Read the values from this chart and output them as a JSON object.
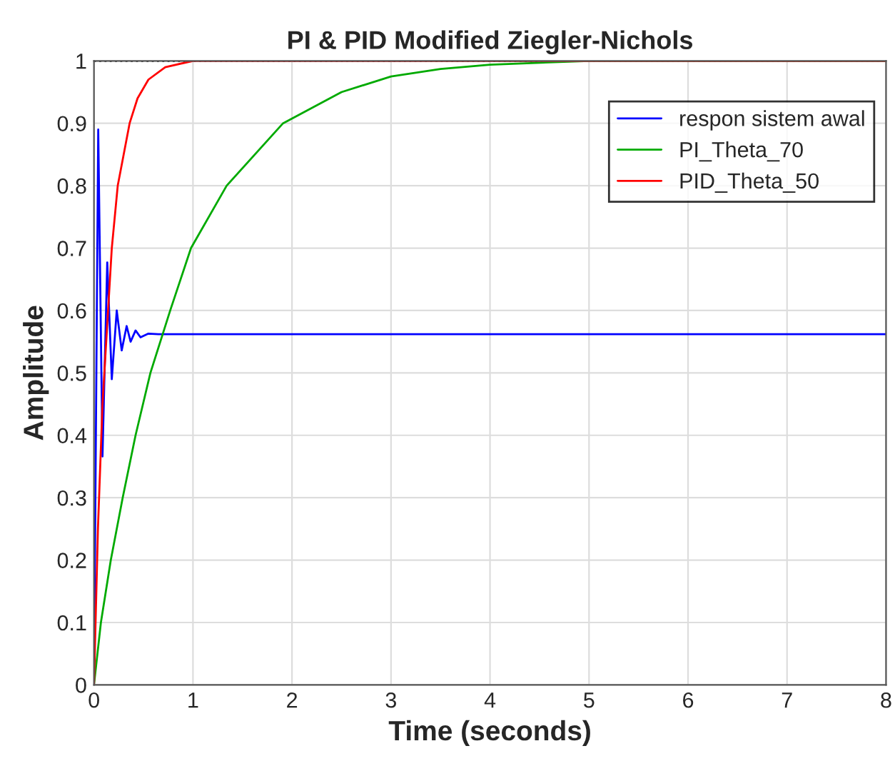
{
  "chart_data": {
    "type": "line",
    "title": "PI & PID Modified Ziegler-Nichols",
    "xlabel": "Time (seconds)",
    "ylabel": "Amplitude",
    "xlim": [
      0,
      8
    ],
    "xticks": [
      0,
      1,
      2,
      3,
      4,
      5,
      6,
      7,
      8
    ],
    "ylim": [
      0,
      1
    ],
    "yticks": [
      0,
      0.1,
      0.2,
      0.3,
      0.4,
      0.5,
      0.6,
      0.7,
      0.8,
      0.9,
      1
    ],
    "grid": true,
    "legend": "top right",
    "marker": "none",
    "line_style": "solid",
    "ref_lines": [
      {
        "axis": "y",
        "value": 1,
        "color": "#000000",
        "line_style": "dotted"
      }
    ],
    "series": [
      {
        "name": "respon sistem awal",
        "color": "#0000ff",
        "x": [
          0,
          0.043,
          0.086,
          0.134,
          0.18,
          0.23,
          0.28,
          0.33,
          0.37,
          0.42,
          0.47,
          0.55,
          0.65,
          8
        ],
        "values": [
          0,
          0.89,
          0.366,
          0.677,
          0.49,
          0.6,
          0.536,
          0.575,
          0.55,
          0.568,
          0.557,
          0.563,
          0.562,
          0.562
        ]
      },
      {
        "name": "PI_Theta_70",
        "color": "#00aa00",
        "x": [
          0,
          0.07,
          0.17,
          0.29,
          0.42,
          0.57,
          0.77,
          0.98,
          1.34,
          1.91,
          2.5,
          3,
          3.5,
          4,
          5,
          8
        ],
        "values": [
          0,
          0.1,
          0.2,
          0.3,
          0.4,
          0.5,
          0.6,
          0.7,
          0.8,
          0.9,
          0.95,
          0.975,
          0.987,
          0.994,
          1,
          1
        ]
      },
      {
        "name": "PID_Theta_50",
        "color": "#ff0000",
        "x": [
          0,
          0.04,
          0.086,
          0.18,
          0.24,
          0.36,
          0.44,
          0.55,
          0.72,
          1,
          8
        ],
        "values": [
          0,
          0.25,
          0.45,
          0.7,
          0.8,
          0.9,
          0.94,
          0.97,
          0.99,
          1,
          1
        ]
      }
    ]
  }
}
